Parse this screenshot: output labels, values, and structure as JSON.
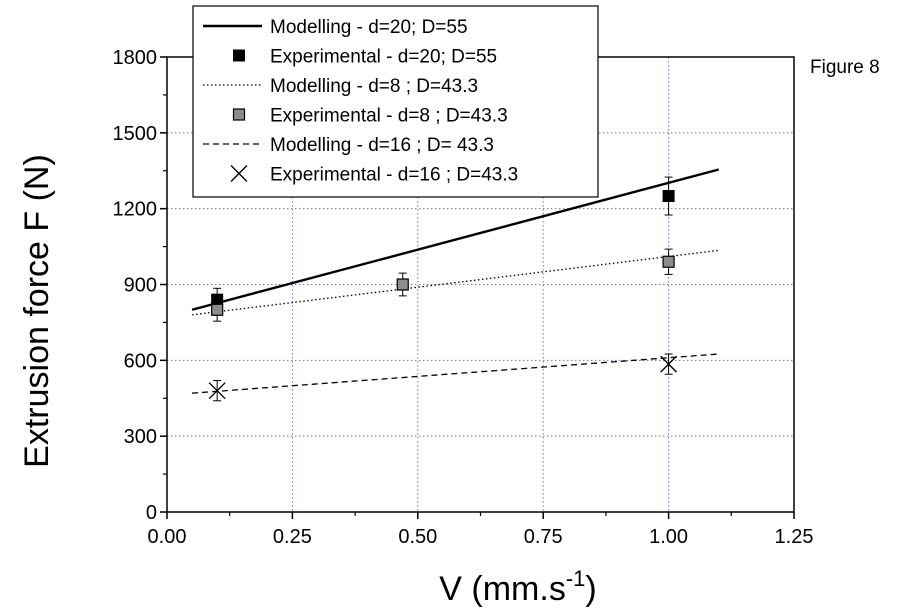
{
  "chart_data": {
    "type": "line",
    "annotation": "Figure 8",
    "xlabel": "V (mm.s",
    "xlabel_sup": "-1",
    "xlabel_end": ")",
    "ylabel": "Extrusion force F (N)",
    "xlim": [
      0.0,
      1.25
    ],
    "ylim": [
      0,
      1800
    ],
    "x_ticks": [
      "0.00",
      "0.25",
      "0.50",
      "0.75",
      "1.00",
      "1.25"
    ],
    "y_ticks": [
      "0",
      "300",
      "600",
      "900",
      "1200",
      "1500",
      "1800"
    ],
    "grid": true,
    "legend_position": "top",
    "series": [
      {
        "name": "Modelling - d=20; D=55",
        "kind": "line",
        "style": "solid",
        "x": [
          0.05,
          1.1
        ],
        "y": [
          800,
          1355
        ]
      },
      {
        "name": "Experimental - d=20; D=55",
        "kind": "points",
        "marker": "square-black",
        "x": [
          0.1,
          1.0
        ],
        "y": [
          840,
          1250
        ],
        "err": [
          45,
          75
        ]
      },
      {
        "name": "Modelling - d=8 ; D=43.3",
        "kind": "line",
        "style": "dotted",
        "x": [
          0.05,
          1.1
        ],
        "y": [
          780,
          1035
        ]
      },
      {
        "name": "Experimental - d=8 ; D=43.3",
        "kind": "points",
        "marker": "square-gray",
        "x": [
          0.1,
          0.47,
          1.0
        ],
        "y": [
          800,
          900,
          990
        ],
        "err": [
          45,
          45,
          50
        ]
      },
      {
        "name": "Modelling - d=16 ; D= 43.3",
        "kind": "line",
        "style": "dashed",
        "x": [
          0.05,
          1.1
        ],
        "y": [
          470,
          625
        ]
      },
      {
        "name": "Experimental - d=16 ; D=43.3",
        "kind": "points",
        "marker": "cross",
        "x": [
          0.1,
          1.0
        ],
        "y": [
          480,
          585
        ],
        "err": [
          40,
          40
        ]
      }
    ]
  }
}
